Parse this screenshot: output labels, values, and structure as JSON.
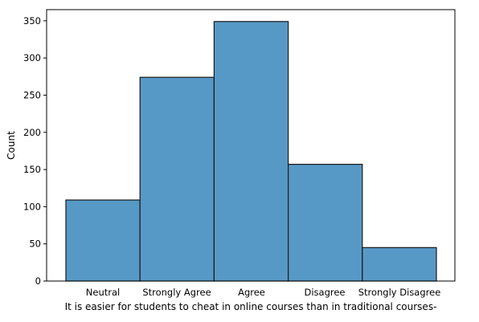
{
  "chart_data": {
    "type": "bar",
    "categories": [
      "Neutral",
      "Strongly Agree",
      "Agree",
      "Disagree",
      "Strongly Disagree"
    ],
    "values": [
      109,
      274,
      349,
      157,
      45
    ],
    "title": "",
    "xlabel": "It is easier for students to cheat in online courses than in traditional courses-",
    "ylabel": "Count",
    "ylim": [
      0,
      365
    ],
    "yticks": [
      0,
      50,
      100,
      150,
      200,
      250,
      300,
      350
    ],
    "grid": false,
    "bar_color": "#5799c6",
    "edge_color": "#1a1a1a"
  }
}
